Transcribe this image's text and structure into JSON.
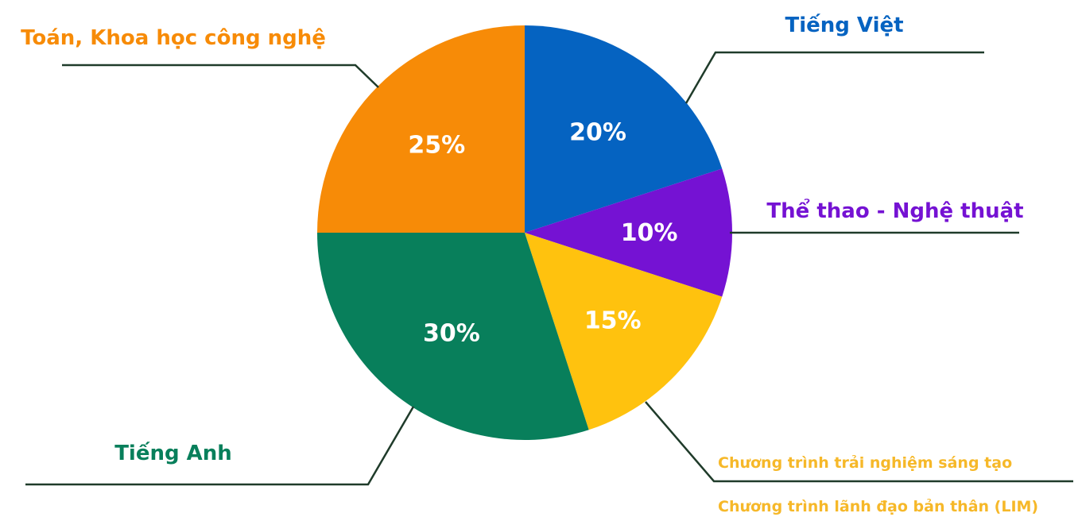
{
  "chart_data": {
    "type": "pie",
    "slices": [
      {
        "label": "Tiếng Việt",
        "value": 20,
        "value_label": "20%",
        "color": "#0563C1"
      },
      {
        "label": "Thể thao - Nghệ thuật",
        "value": 10,
        "value_label": "10%",
        "color": "#7512D3"
      },
      {
        "label": "Chương trình trải nghiệm sáng tạo",
        "label2": "Chương trình lãnh đạo bản thân (LIM)",
        "value": 15,
        "value_label": "15%",
        "color": "#FFC20E"
      },
      {
        "label": "Tiếng Anh",
        "value": 30,
        "value_label": "30%",
        "color": "#087F5B"
      },
      {
        "label": "Toán, Khoa học công nghệ",
        "value": 25,
        "value_label": "25%",
        "color": "#F78B07"
      }
    ]
  },
  "label_colors": {
    "tieng_viet": "#0563C1",
    "the_thao": "#7512D3",
    "trai_nghiem": "#F6B829",
    "tieng_anh": "#087F5B",
    "toan": "#F78B07"
  }
}
